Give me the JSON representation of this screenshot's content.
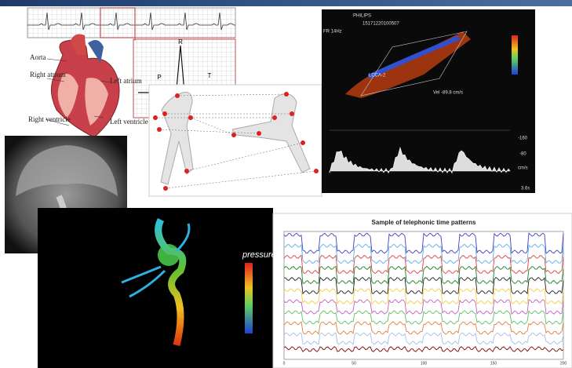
{
  "heart": {
    "labels": [
      "Aorta",
      "Right atrium",
      "Left atrium",
      "Right ventricle",
      "Left ventricle"
    ]
  },
  "ecg": {
    "labels": [
      "R",
      "P",
      "T"
    ]
  },
  "ultrasound": {
    "brand": "PHILIPS",
    "id": "15171220100507",
    "settings": "FR 14Hz",
    "vessel": "LCCA-2",
    "velocity": "Vel -89.8 cm/s",
    "scale": [
      "-160",
      "-80",
      "cm/s"
    ],
    "time": "3.6s"
  },
  "pressure": {
    "label": "pressure"
  },
  "chart": {
    "title": "Sample of telephonic time patterns",
    "xticks": [
      "0",
      "50",
      "100",
      "150",
      "200"
    ]
  }
}
